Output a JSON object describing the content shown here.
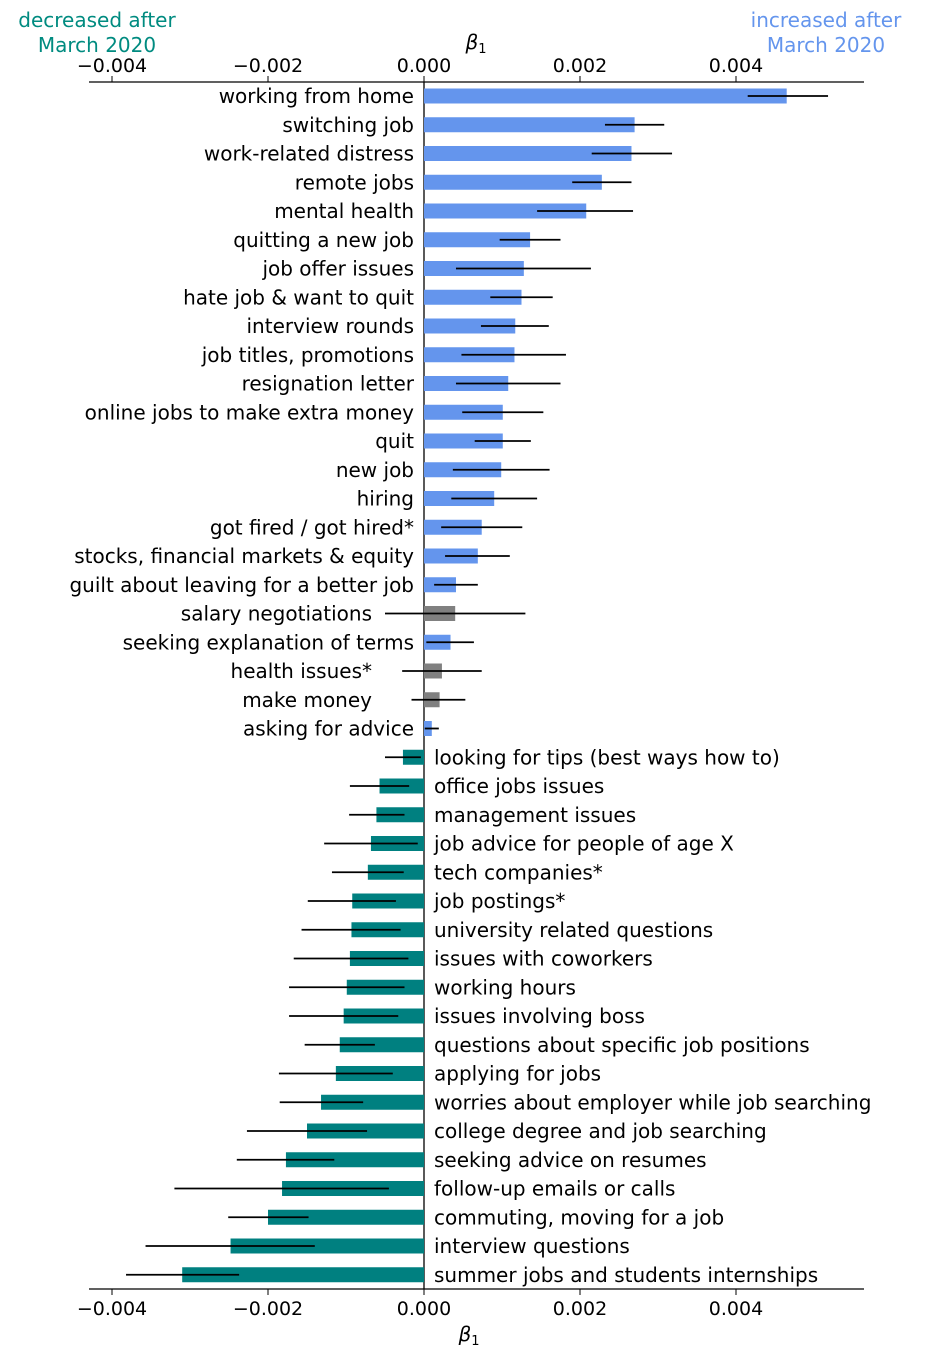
{
  "chart_data": {
    "type": "bar",
    "orientation": "horizontal",
    "x_axis_label": "β",
    "x_axis_label_subscript": "1",
    "xlim": [
      -0.0043,
      0.0056
    ],
    "x_ticks": [
      -0.004,
      -0.002,
      0.0,
      0.002,
      0.004
    ],
    "x_tick_labels": [
      "−0.004",
      "−0.002",
      "0.000",
      "0.002",
      "0.004"
    ],
    "annotations": {
      "left": [
        "decreased after",
        "March 2020"
      ],
      "right": [
        "increased after",
        "March 2020"
      ]
    },
    "colors": {
      "increased": "#6495ED",
      "decreased": "#008080",
      "not_significant": "#808080",
      "error_bar": "#000000"
    },
    "bars": [
      {
        "label": "working from home",
        "value": 0.00465,
        "err_low": 0.00415,
        "err_high": 0.00518,
        "group": "increased"
      },
      {
        "label": "switching job",
        "value": 0.0027,
        "err_low": 0.00232,
        "err_high": 0.00308,
        "group": "increased"
      },
      {
        "label": "work-related distress",
        "value": 0.00266,
        "err_low": 0.00215,
        "err_high": 0.00318,
        "group": "increased"
      },
      {
        "label": "remote jobs",
        "value": 0.00228,
        "err_low": 0.0019,
        "err_high": 0.00266,
        "group": "increased"
      },
      {
        "label": "mental health",
        "value": 0.00208,
        "err_low": 0.00145,
        "err_high": 0.00268,
        "group": "increased"
      },
      {
        "label": "quitting a new job",
        "value": 0.00136,
        "err_low": 0.00097,
        "err_high": 0.00175,
        "group": "increased"
      },
      {
        "label": "job offer issues",
        "value": 0.00128,
        "err_low": 0.00041,
        "err_high": 0.00214,
        "group": "increased"
      },
      {
        "label": "hate job & want to quit",
        "value": 0.00125,
        "err_low": 0.00085,
        "err_high": 0.00165,
        "group": "increased"
      },
      {
        "label": "interview rounds",
        "value": 0.00117,
        "err_low": 0.00073,
        "err_high": 0.0016,
        "group": "increased"
      },
      {
        "label": "job titles, promotions",
        "value": 0.00116,
        "err_low": 0.00048,
        "err_high": 0.00182,
        "group": "increased"
      },
      {
        "label": "resignation letter",
        "value": 0.00108,
        "err_low": 0.00041,
        "err_high": 0.00175,
        "group": "increased"
      },
      {
        "label": "online jobs to make extra money",
        "value": 0.00101,
        "err_low": 0.00049,
        "err_high": 0.00153,
        "group": "increased"
      },
      {
        "label": "quit",
        "value": 0.00101,
        "err_low": 0.00065,
        "err_high": 0.00137,
        "group": "increased"
      },
      {
        "label": "new job",
        "value": 0.00099,
        "err_low": 0.00037,
        "err_high": 0.00161,
        "group": "increased"
      },
      {
        "label": "hiring",
        "value": 0.0009,
        "err_low": 0.00035,
        "err_high": 0.00145,
        "group": "increased"
      },
      {
        "label": "got fired / got hired*",
        "value": 0.00074,
        "err_low": 0.00022,
        "err_high": 0.00126,
        "group": "increased"
      },
      {
        "label": "stocks, financial markets & equity",
        "value": 0.00069,
        "err_low": 0.00027,
        "err_high": 0.0011,
        "group": "increased"
      },
      {
        "label": "guilt about leaving for a better job",
        "value": 0.00041,
        "err_low": 0.00013,
        "err_high": 0.00069,
        "group": "increased"
      },
      {
        "label": "salary negotiations",
        "value": 0.0004,
        "err_low": -0.0005,
        "err_high": 0.0013,
        "group": "not_significant"
      },
      {
        "label": "seeking explanation of terms",
        "value": 0.00034,
        "err_low": 3e-05,
        "err_high": 0.00064,
        "group": "increased"
      },
      {
        "label": "health issues*",
        "value": 0.00023,
        "err_low": -0.00028,
        "err_high": 0.00074,
        "group": "not_significant"
      },
      {
        "label": "make money",
        "value": 0.0002,
        "err_low": -0.00016,
        "err_high": 0.00053,
        "group": "not_significant"
      },
      {
        "label": "asking for advice",
        "value": 0.0001,
        "err_low": 1e-05,
        "err_high": 0.00019,
        "group": "increased"
      },
      {
        "label": "looking for tips (best ways how to)",
        "value": -0.00027,
        "err_low": -0.0005,
        "err_high": -4e-05,
        "group": "decreased"
      },
      {
        "label": "office jobs issues",
        "value": -0.00057,
        "err_low": -0.00095,
        "err_high": -0.00019,
        "group": "decreased"
      },
      {
        "label": "management issues",
        "value": -0.00061,
        "err_low": -0.00096,
        "err_high": -0.00025,
        "group": "decreased"
      },
      {
        "label": "job advice for people of age X",
        "value": -0.00068,
        "err_low": -0.00128,
        "err_high": -8e-05,
        "group": "decreased"
      },
      {
        "label": "tech companies*",
        "value": -0.00072,
        "err_low": -0.00118,
        "err_high": -0.00026,
        "group": "decreased"
      },
      {
        "label": "job postings*",
        "value": -0.00092,
        "err_low": -0.00149,
        "err_high": -0.00036,
        "group": "decreased"
      },
      {
        "label": "university related questions",
        "value": -0.00093,
        "err_low": -0.00157,
        "err_high": -0.0003,
        "group": "decreased"
      },
      {
        "label": "issues with coworkers",
        "value": -0.00095,
        "err_low": -0.00167,
        "err_high": -0.0002,
        "group": "decreased"
      },
      {
        "label": "working hours",
        "value": -0.00099,
        "err_low": -0.00173,
        "err_high": -0.00025,
        "group": "decreased"
      },
      {
        "label": "issues involving boss",
        "value": -0.00103,
        "err_low": -0.00173,
        "err_high": -0.00033,
        "group": "decreased"
      },
      {
        "label": "questions about specific job positions",
        "value": -0.00108,
        "err_low": -0.00153,
        "err_high": -0.00063,
        "group": "decreased"
      },
      {
        "label": "applying for jobs",
        "value": -0.00113,
        "err_low": -0.00186,
        "err_high": -0.0004,
        "group": "decreased"
      },
      {
        "label": "worries about employer while job searching",
        "value": -0.00132,
        "err_low": -0.00185,
        "err_high": -0.00078,
        "group": "decreased"
      },
      {
        "label": "college degree and job searching",
        "value": -0.0015,
        "err_low": -0.00227,
        "err_high": -0.00073,
        "group": "decreased"
      },
      {
        "label": "seeking advice on resumes",
        "value": -0.00177,
        "err_low": -0.0024,
        "err_high": -0.00115,
        "group": "decreased"
      },
      {
        "label": "follow-up emails or calls",
        "value": -0.00182,
        "err_low": -0.0032,
        "err_high": -0.00045,
        "group": "decreased"
      },
      {
        "label": "commuting, moving for a job",
        "value": -0.002,
        "err_low": -0.00251,
        "err_high": -0.00148,
        "group": "decreased"
      },
      {
        "label": "interview questions",
        "value": -0.00248,
        "err_low": -0.00357,
        "err_high": -0.0014,
        "group": "decreased"
      },
      {
        "label": "summer jobs and students internships",
        "value": -0.0031,
        "err_low": -0.00382,
        "err_high": -0.00237,
        "group": "decreased"
      }
    ]
  }
}
